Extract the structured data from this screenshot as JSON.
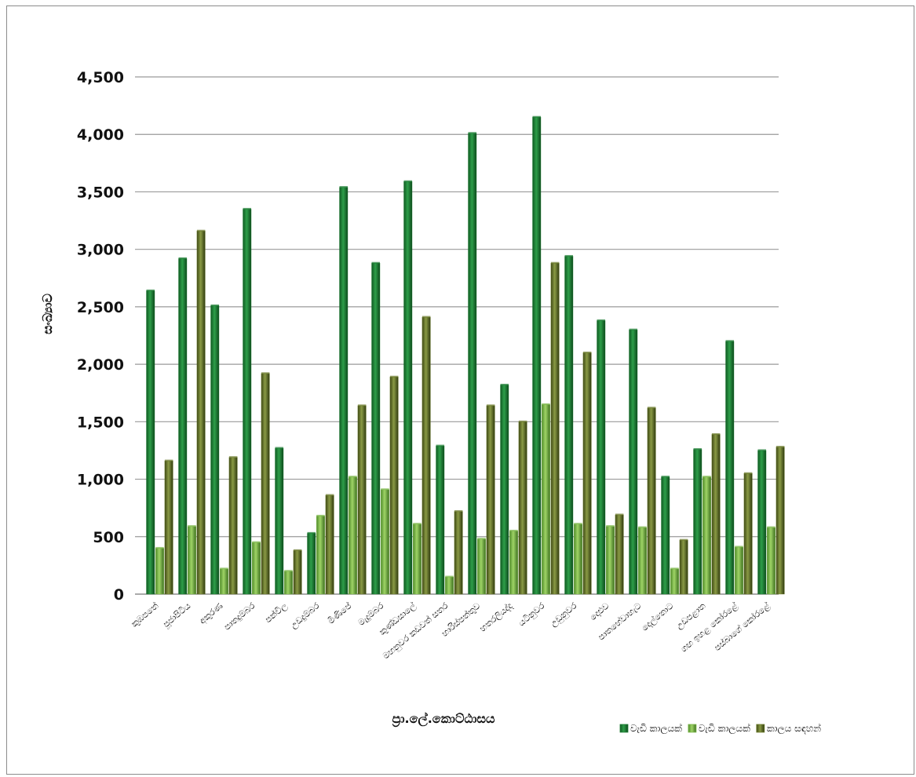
{
  "chart_data": {
    "type": "bar",
    "title": "",
    "xlabel": "ප්‍රා.ලේ.කොට්ඨාසය",
    "ylabel": "සංඛ්‍යාව",
    "ylim": [
      0,
      4500
    ],
    "ytick_step": 500,
    "ytick_labels": [
      "0",
      "500",
      "1,000",
      "1,500",
      "2,000",
      "2,500",
      "3,000",
      "3,500",
      "4,000",
      "4,500"
    ],
    "grid": true,
    "legend_position": "bottom-right",
    "categories": [
      "කුඹපතේ",
      "පූජාපිටිය",
      "අකුරණ",
      "පාතදුම්බර",
      "පන්විල",
      "උඩදුම්බර",
      "මිණිපේ",
      "මැදුම්බර",
      "කුණ්ඩසාලේ",
      "මහනුවර කඩවත් සතර",
      "හාරිස්පත්තුව",
      "හතරලියද්ද",
      "යටිනුවර",
      "උඩුනුවර",
      "දොළුව",
      "පාතහේවාහැට",
      "දෙල්තොට",
      "උඩපළාත",
      "ගඟ ඉහළ කෝරළේ",
      "පස්බාගේ කෝරළේ"
    ],
    "series": [
      {
        "name": "වැඩි කාලයක්",
        "color": "#1e7d34",
        "values": [
          2640,
          2920,
          2510,
          3350,
          1270,
          530,
          3540,
          2880,
          3590,
          1290,
          4010,
          1820,
          4150,
          2940,
          2380,
          2300,
          1020,
          1260,
          2200,
          1250
        ]
      },
      {
        "name": "වැඩි කාලයක්",
        "color": "#7ab648",
        "values": [
          400,
          590,
          220,
          450,
          200,
          680,
          1020,
          910,
          610,
          150,
          480,
          550,
          1650,
          610,
          590,
          580,
          220,
          1020,
          410,
          580
        ]
      },
      {
        "name": "කාලය සඳහන්",
        "color": "#6b7b2c",
        "values": [
          1160,
          3160,
          1190,
          1920,
          380,
          860,
          1640,
          1890,
          2410,
          720,
          1640,
          1500,
          2880,
          2100,
          690,
          1620,
          470,
          1390,
          1050,
          1280
        ]
      }
    ]
  }
}
